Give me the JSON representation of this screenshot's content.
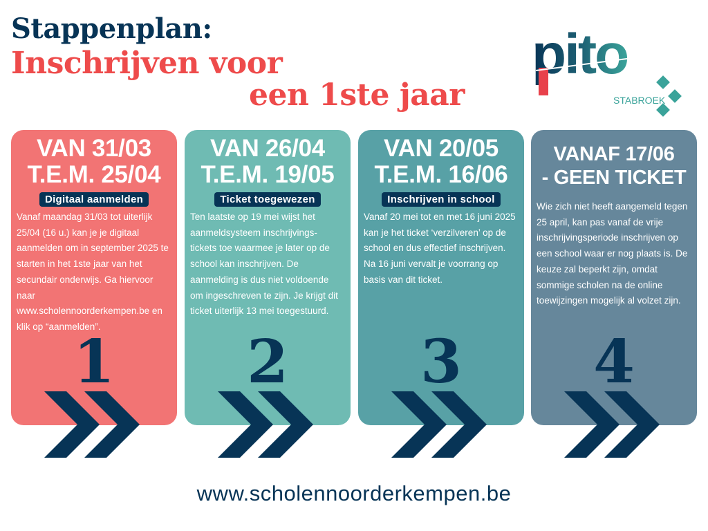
{
  "title": {
    "line1": "Stappenplan:",
    "line2": "Inschrijven voor",
    "line3": "een 1ste jaar"
  },
  "logo": {
    "text": "pito",
    "subtitle": "STABROEK"
  },
  "colors": {
    "navy": "#073456",
    "red": "#ee4b4b",
    "step1": "#f27474",
    "step2": "#6fbbb3",
    "step3": "#58a1a6",
    "step4": "#66879b"
  },
  "steps": [
    {
      "heading1": "VAN 31/03",
      "heading2": "T.E.M. 25/04",
      "label": "Digitaal aanmelden",
      "text": "Vanaf maandag 31/03 tot uiterlijk 25/04 (16 u.) kan je je digitaal aanmelden om in september 2025 te starten in het 1ste jaar van het secundair onderwijs. Ga hiervoor naar www.scholennoorderkempen.be en klik op “aanmelden”.",
      "number": "1",
      "icon": "double-chevron-right-icon"
    },
    {
      "heading1": "VAN 26/04",
      "heading2": "T.E.M. 19/05",
      "label": "Ticket toegewezen",
      "text": "Ten laatste op 19 mei wijst het aanmeldsysteem inschrijvings-tickets toe waarmee je later op de school kan inschrijven. De aanmelding is dus niet voldoende om ingeschreven te zijn. Je krijgt dit ticket uiterlijk 13 mei toegestuurd.",
      "number": "2",
      "icon": "double-chevron-right-icon"
    },
    {
      "heading1": "VAN 20/05",
      "heading2": "T.E.M. 16/06",
      "label": "Inschrijven in school",
      "text": "Vanaf 20 mei tot en met 16 juni 2025 kan je het ticket ‘verzilveren’ op de school en dus effectief inschrijven. Na 16 juni vervalt je voorrang op basis van dit ticket.",
      "number": "3",
      "icon": "double-chevron-right-icon"
    },
    {
      "heading1": "VANAF 17/06",
      "heading2": "- GEEN TICKET",
      "text": "Wie zich niet heeft aangemeld tegen 25 april, kan pas vanaf de vrije inschrijvingsperiode inschrijven op een school waar er nog plaats is. De keuze zal beperkt zijn, omdat sommige scholen na de online toewijzingen mogelijk al volzet zijn.",
      "number": "4",
      "icon": "double-chevron-right-icon"
    }
  ],
  "footer": {
    "url": "www.scholennoorderkempen.be"
  }
}
